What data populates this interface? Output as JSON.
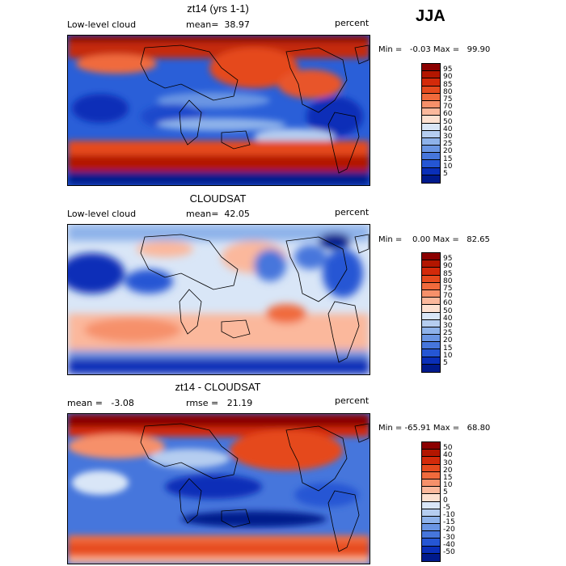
{
  "season": "JJA",
  "panels": [
    {
      "title": "zt14 (yrs 1-1)",
      "left_label": "Low-level cloud",
      "mid_label": "mean=  38.97",
      "right_label": "percent",
      "minmax": "Min =   -0.03 Max =   99.90",
      "scale": "abs"
    },
    {
      "title": "CLOUDSAT",
      "left_label": "Low-level cloud",
      "mid_label": "mean=  42.05",
      "right_label": "percent",
      "minmax": "Min =    0.00 Max =   82.65",
      "scale": "abs"
    },
    {
      "title": "zt14 - CLOUDSAT",
      "left_label": "mean =   -3.08",
      "mid_label": "rmse =   21.19",
      "right_label": "percent",
      "minmax": "Min = -65.91 Max =   68.80",
      "scale": "diff"
    }
  ],
  "colorbars": {
    "abs": {
      "labels": [
        "95",
        "90",
        "85",
        "80",
        "75",
        "70",
        "60",
        "50",
        "40",
        "30",
        "25",
        "20",
        "15",
        "10",
        "5"
      ],
      "colors": [
        "#8b0000",
        "#b31600",
        "#d32a0a",
        "#e54a1e",
        "#f06a3c",
        "#f6906a",
        "#fbb89c",
        "#fde0d0",
        "#d9e6f7",
        "#b5cdf0",
        "#8eb2ea",
        "#6a95e3",
        "#4676dc",
        "#2556d4",
        "#0a2fb8",
        "#001a8c"
      ]
    },
    "diff": {
      "labels": [
        "50",
        "40",
        "30",
        "20",
        "15",
        "10",
        "5",
        "0",
        "-5",
        "-10",
        "-15",
        "-20",
        "-30",
        "-40",
        "-50"
      ],
      "colors": [
        "#8b0000",
        "#b31600",
        "#d32a0a",
        "#e54a1e",
        "#f06a3c",
        "#f6906a",
        "#fbb89c",
        "#fde0d0",
        "#d9e6f7",
        "#b5cdf0",
        "#8eb2ea",
        "#6a95e3",
        "#4676dc",
        "#2556d4",
        "#0a2fb8",
        "#001a8c"
      ]
    }
  }
}
